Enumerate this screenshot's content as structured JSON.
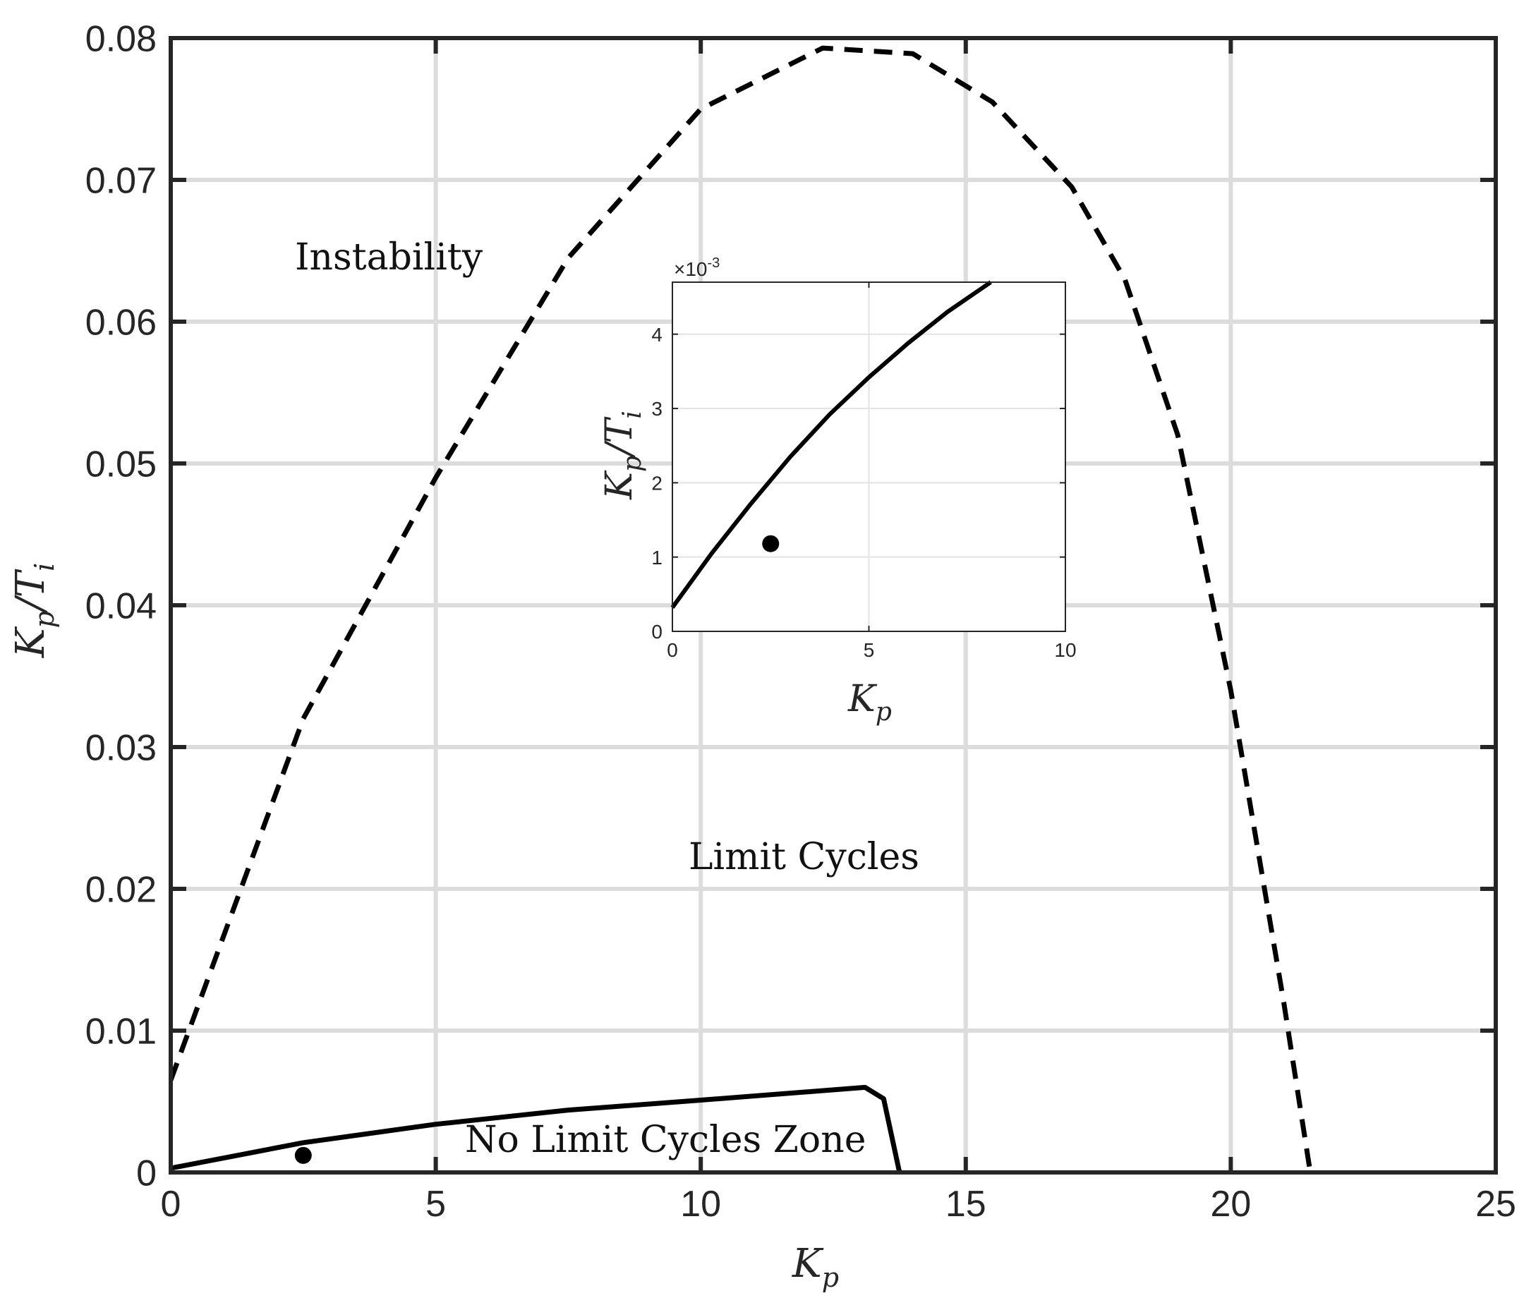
{
  "chart_data": [
    {
      "type": "line",
      "xlabel": "K",
      "xlabel_sub": "p",
      "ylabel": "K",
      "ylabel_sub": "p",
      "ylabel_rest": "/T",
      "ylabel_rest_sub": "i",
      "xlim": [
        0,
        25
      ],
      "ylim": [
        0,
        0.08
      ],
      "xticks": [
        "0",
        "5",
        "10",
        "15",
        "20",
        "25"
      ],
      "yticks": [
        "0",
        "0.01",
        "0.02",
        "0.03",
        "0.04",
        "0.05",
        "0.06",
        "0.07",
        "0.08"
      ],
      "grid": true,
      "series": [
        {
          "style": "dashed",
          "color": "#000000",
          "points": [
            [
              0,
              0.0065
            ],
            [
              2.5,
              0.032
            ],
            [
              5,
              0.049
            ],
            [
              7.5,
              0.0645
            ],
            [
              10,
              0.075
            ],
            [
              12.3,
              0.0793
            ],
            [
              14,
              0.0789
            ],
            [
              15.5,
              0.0755
            ],
            [
              17,
              0.0695
            ],
            [
              18,
              0.063
            ],
            [
              19,
              0.052
            ],
            [
              20,
              0.034
            ],
            [
              21,
              0.012
            ],
            [
              21.5,
              0.0
            ]
          ]
        },
        {
          "style": "solid",
          "color": "#000000",
          "points": [
            [
              0,
              0.0003
            ],
            [
              2.5,
              0.0021
            ],
            [
              5,
              0.0034
            ],
            [
              7.5,
              0.0044
            ],
            [
              10,
              0.0051
            ],
            [
              13.1,
              0.006
            ],
            [
              13.45,
              0.0052
            ],
            [
              13.75,
              0.0
            ]
          ]
        }
      ],
      "marker": {
        "x": 2.5,
        "y": 0.0012,
        "color": "#000000"
      },
      "annotations": [
        "Instability",
        "Limit Cycles",
        "No Limit Cycles Zone"
      ]
    },
    {
      "type": "line",
      "inset": true,
      "xlabel": "K",
      "xlabel_sub": "p",
      "ylabel": "K",
      "ylabel_sub": "p",
      "ylabel_rest": "/T",
      "ylabel_rest_sub": "i",
      "exponent_label": "×10",
      "exponent_power": "-3",
      "xlim": [
        0,
        10
      ],
      "ylim": [
        0,
        4.7
      ],
      "xticks": [
        "0",
        "5",
        "10"
      ],
      "yticks": [
        "0",
        "1",
        "2",
        "3",
        "4"
      ],
      "grid": true,
      "series": [
        {
          "style": "solid",
          "color": "#000000",
          "points": [
            [
              0,
              0.32
            ],
            [
              1,
              1.05
            ],
            [
              2,
              1.72
            ],
            [
              3,
              2.35
            ],
            [
              4,
              2.92
            ],
            [
              5,
              3.42
            ],
            [
              6,
              3.88
            ],
            [
              7,
              4.3
            ],
            [
              8.1,
              4.7
            ]
          ]
        }
      ],
      "marker": {
        "x": 2.5,
        "y": 1.18,
        "color": "#000000"
      }
    }
  ]
}
